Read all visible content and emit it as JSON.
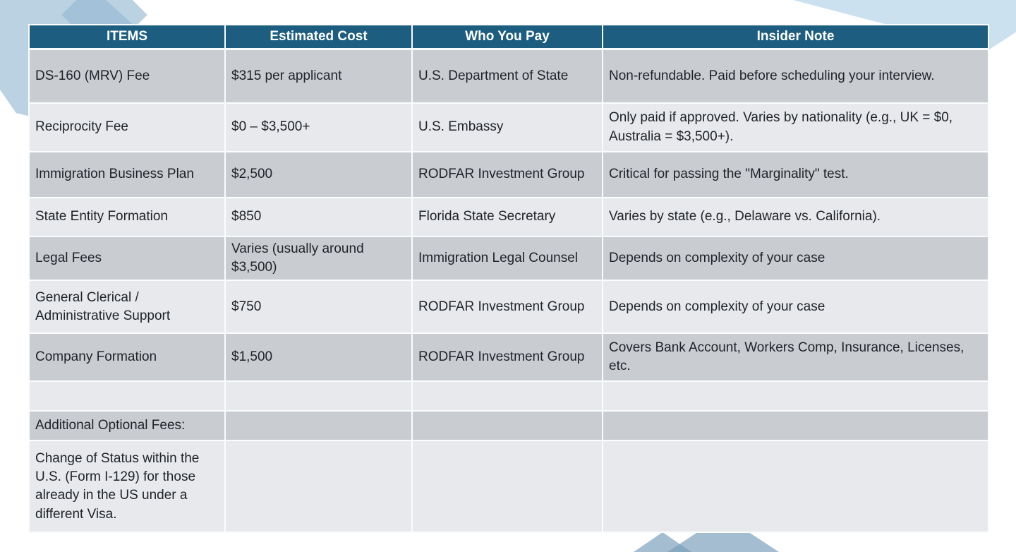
{
  "colors": {
    "header_bg": "#1d5d7f",
    "header_text": "#ffffff",
    "row_dark": "#c9cdd2",
    "row_light": "#e7e9ec",
    "grid": "#fbfcfd",
    "text": "#1f2328",
    "decor_blue_pale": "#cce1ef",
    "decor_blue_mid": "#c1d6e5",
    "decor_blue_deep": "#a8c0d2"
  },
  "table": {
    "headers": [
      "ITEMS",
      "Estimated Cost",
      "Who You Pay",
      "Insider Note"
    ],
    "rows": [
      {
        "item": "DS-160 (MRV) Fee",
        "cost": "$315 per applicant",
        "payee": "U.S. Department of State",
        "note": "Non-refundable. Paid before scheduling your interview."
      },
      {
        "item": "Reciprocity Fee",
        "cost": "$0 – $3,500+",
        "payee": "U.S. Embassy",
        "note": "Only paid if approved. Varies by nationality (e.g., UK = $0, Australia = $3,500+)."
      },
      {
        "item": "Immigration Business Plan",
        "cost": "$2,500",
        "payee": "RODFAR Investment Group",
        "note": "Critical for passing the \"Marginality\" test."
      },
      {
        "item": "State Entity Formation",
        "cost": "$850",
        "payee": "Florida State Secretary",
        "note": "Varies by state (e.g., Delaware vs. California)."
      },
      {
        "item": "Legal Fees",
        "cost": "Varies (usually around $3,500)",
        "payee": "Immigration Legal Counsel",
        "note": "Depends on complexity of your case"
      },
      {
        "item": "General Clerical / Administrative Support",
        "cost": "$750",
        "payee": "RODFAR Investment Group",
        "note": "Depends on complexity of your case"
      },
      {
        "item": "Company Formation",
        "cost": "$1,500",
        "payee": "RODFAR Investment Group",
        "note": "Covers Bank Account, Workers Comp, Insurance, Licenses, etc."
      },
      {
        "item": "",
        "cost": "",
        "payee": "",
        "note": ""
      },
      {
        "item": "Additional Optional Fees:",
        "cost": "",
        "payee": "",
        "note": ""
      },
      {
        "item": "Change of Status within the U.S. (Form I-129) for those already in the US under a different Visa.",
        "cost": "",
        "payee": "",
        "note": ""
      }
    ]
  }
}
